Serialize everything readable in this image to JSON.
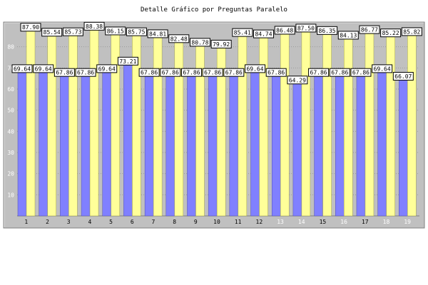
{
  "chart_data": {
    "type": "bar",
    "title": "Detalle Gráfico por Preguntas Paralelo",
    "xlabel": "",
    "ylabel": "",
    "ylim": [
      0,
      90
    ],
    "yticks": [
      10,
      20,
      30,
      40,
      50,
      60,
      70,
      80
    ],
    "grid": true,
    "categories": [
      "1",
      "2",
      "3",
      "4",
      "5",
      "6",
      "7",
      "8",
      "9",
      "10",
      "11",
      "12",
      "13",
      "14",
      "15",
      "16",
      "17",
      "18",
      "19"
    ],
    "series": [
      {
        "name": "",
        "color": "#8080ff",
        "values": [
          69.64,
          69.64,
          67.86,
          67.86,
          69.64,
          73.21,
          67.86,
          67.86,
          67.86,
          67.86,
          67.86,
          69.64,
          67.86,
          64.29,
          67.86,
          67.86,
          67.86,
          69.64,
          66.07
        ],
        "labels": [
          "69.64",
          "69.64",
          "67.86",
          "67.86",
          "69.64",
          "73.21",
          "67.86",
          "67.86",
          "67.86",
          "67.86",
          "67.86",
          "69.64",
          "67.86",
          "64.29",
          "67.86",
          "67.86",
          "67.86",
          "69.64",
          "66.07"
        ]
      },
      {
        "name": "",
        "color": "#ffff99",
        "values": [
          87.9,
          85.54,
          85.73,
          88.38,
          86.15,
          85.75,
          84.81,
          82.48,
          80.78,
          79.92,
          85.41,
          84.74,
          86.48,
          87.5,
          86.35,
          84.13,
          86.77,
          85.22,
          85.82
        ],
        "labels": [
          "87.90",
          "85.54",
          "85.73",
          "88.38",
          "86.15",
          "85.75",
          "84.81",
          "82.48",
          "80.78",
          "79.92",
          "85.41",
          "84.74",
          "86.48",
          "87.50",
          "86.35",
          "84.13",
          "86.77",
          "85.22",
          "85.82"
        ]
      }
    ],
    "colors": {
      "background": "#c0c0c0",
      "page": "#ffffff",
      "grid": "#9a9a9a",
      "axis_text": "#ffffff",
      "xtick_dark": "#000000",
      "xtick_light": "#ffffff"
    }
  }
}
